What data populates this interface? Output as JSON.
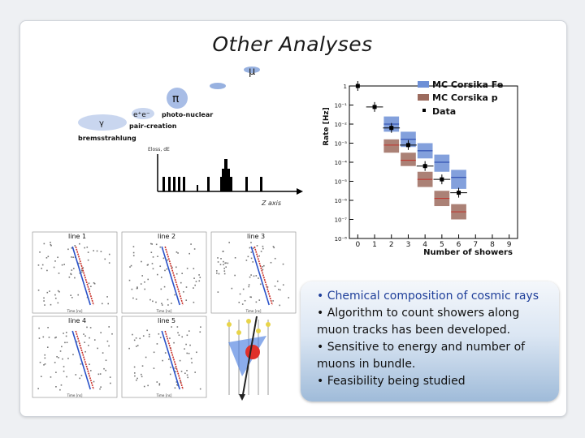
{
  "slide": {
    "title": "Other Analyses"
  },
  "diagram": {
    "labels": {
      "mu": "μ",
      "pi": "π",
      "gamma": "γ",
      "epem": "e⁺e⁻",
      "photo_nuclear": "photo-nuclear",
      "pair_creation": "pair-creation",
      "bremsstrahlung": "bremsstrahlung",
      "y_axis": "Eloss, dE",
      "x_axis": "Z axis"
    }
  },
  "chart_data": {
    "type": "bar",
    "ylabel": "Rate [Hz]",
    "xlabel": "Number of showers",
    "x_ticks": [
      "0",
      "1",
      "2",
      "3",
      "4",
      "5",
      "6",
      "7",
      "8",
      "9"
    ],
    "y_ticks": [
      "1",
      "10⁻¹",
      "10⁻²",
      "10⁻³",
      "10⁻⁴",
      "10⁻⁵",
      "10⁻⁶",
      "10⁻⁷",
      "10⁻⁸"
    ],
    "ylim_exp": [
      -8,
      0
    ],
    "xlim": [
      -0.5,
      9.5
    ],
    "series": [
      {
        "name": "MC Corsika Fe",
        "color": "#6d8fd6",
        "bins": [
          {
            "x": 2,
            "lo": -2.4,
            "hi": -1.6,
            "c": -2.0
          },
          {
            "x": 3,
            "lo": -3.2,
            "hi": -2.4,
            "c": -2.8
          },
          {
            "x": 4,
            "lo": -3.8,
            "hi": -3.0,
            "c": -3.4
          },
          {
            "x": 5,
            "lo": -4.5,
            "hi": -3.6,
            "c": -4.0
          },
          {
            "x": 6,
            "lo": -5.4,
            "hi": -4.4,
            "c": -4.8
          }
        ]
      },
      {
        "name": "MC Corsika p",
        "color": "#9c6b5e",
        "bins": [
          {
            "x": 2,
            "lo": -3.5,
            "hi": -2.8,
            "c": -3.1
          },
          {
            "x": 3,
            "lo": -4.2,
            "hi": -3.5,
            "c": -3.9
          },
          {
            "x": 4,
            "lo": -5.3,
            "hi": -4.5,
            "c": -4.9
          },
          {
            "x": 5,
            "lo": -6.3,
            "hi": -5.5,
            "c": -5.9
          },
          {
            "x": 6,
            "lo": -7.0,
            "hi": -6.2,
            "c": -6.6
          }
        ]
      },
      {
        "name": "Data",
        "color": "#000000",
        "points": [
          {
            "x": 0,
            "y": 0
          },
          {
            "x": 1,
            "y": -1.1
          },
          {
            "x": 2,
            "y": -2.2
          },
          {
            "x": 3,
            "y": -3.1
          },
          {
            "x": 4,
            "y": -4.2
          },
          {
            "x": 5,
            "y": -4.9
          },
          {
            "x": 6,
            "y": -5.6
          }
        ]
      }
    ]
  },
  "panels": {
    "titles": [
      "line 1",
      "line 2",
      "line 3",
      "line 4",
      "line 5"
    ],
    "xlabel": "Time [ns]"
  },
  "bullets": [
    "• Chemical composition of cosmic rays",
    "• Algorithm to count showers along",
    "muon tracks has been developed.",
    "• Sensitive to energy and number of",
    "muons in bundle.",
    "• Feasibility being studied"
  ]
}
